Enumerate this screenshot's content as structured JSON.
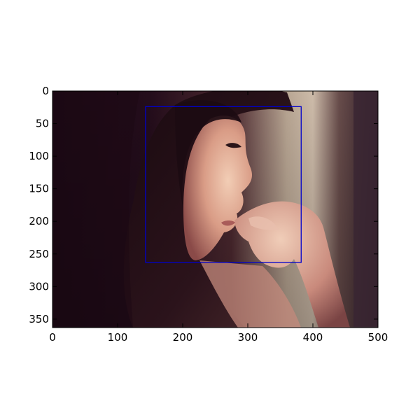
{
  "chart_data": {
    "type": "image",
    "title": "",
    "xlabel": "",
    "ylabel": "",
    "xlim": [
      0,
      500
    ],
    "ylim": [
      363,
      0
    ],
    "x_ticks": [
      0,
      100,
      200,
      300,
      400,
      500
    ],
    "y_ticks": [
      0,
      50,
      100,
      150,
      200,
      250,
      300,
      350
    ],
    "grid": false,
    "bounding_box": {
      "x": [
        143,
        382
      ],
      "y": [
        24,
        263
      ],
      "color": "#0000cc"
    },
    "image_subject": "woman-profile-photo"
  }
}
